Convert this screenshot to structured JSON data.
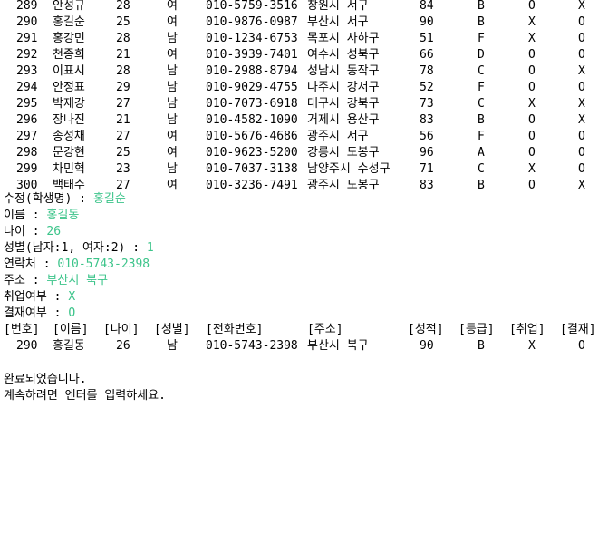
{
  "list_rows": [
    [
      "289",
      "안성규",
      "28",
      "여",
      "010-5759-3516",
      "창원시 서구",
      "84",
      "B",
      "O",
      "X"
    ],
    [
      "290",
      "홍길순",
      "25",
      "여",
      "010-9876-0987",
      "부산시 서구",
      "90",
      "B",
      "X",
      "O"
    ],
    [
      "291",
      "홍강민",
      "28",
      "남",
      "010-1234-6753",
      "목포시 사하구",
      "51",
      "F",
      "X",
      "O"
    ],
    [
      "292",
      "천종희",
      "21",
      "여",
      "010-3939-7401",
      "여수시 성북구",
      "66",
      "D",
      "O",
      "O"
    ],
    [
      "293",
      "이표시",
      "28",
      "남",
      "010-2988-8794",
      "성남시 동작구",
      "78",
      "C",
      "O",
      "X"
    ],
    [
      "294",
      "안정표",
      "29",
      "남",
      "010-9029-4755",
      "나주시 강서구",
      "52",
      "F",
      "O",
      "O"
    ],
    [
      "295",
      "박재강",
      "27",
      "남",
      "010-7073-6918",
      "대구시 강북구",
      "73",
      "C",
      "X",
      "X"
    ],
    [
      "296",
      "장나진",
      "21",
      "남",
      "010-4582-1090",
      "거제시 용산구",
      "83",
      "B",
      "O",
      "X"
    ],
    [
      "297",
      "송성채",
      "27",
      "여",
      "010-5676-4686",
      "광주시 서구",
      "56",
      "F",
      "O",
      "O"
    ],
    [
      "298",
      "문강현",
      "25",
      "여",
      "010-9623-5200",
      "강릉시 도봉구",
      "96",
      "A",
      "O",
      "O"
    ],
    [
      "299",
      "차민혁",
      "23",
      "남",
      "010-7037-3138",
      "남양주시 수성구",
      "71",
      "C",
      "X",
      "O"
    ],
    [
      "300",
      "백태수",
      "27",
      "여",
      "010-3236-7491",
      "광주시 도봉구",
      "83",
      "B",
      "O",
      "X"
    ]
  ],
  "prompts": [
    {
      "label": "수정(학생명) : ",
      "value": "홍길순"
    },
    {
      "label": "이름 : ",
      "value": "홍길동"
    },
    {
      "label": "나이 : ",
      "value": "26"
    },
    {
      "label": "성별(남자:1, 여자:2) : ",
      "value": "1"
    },
    {
      "label": "연락처 : ",
      "value": "010-5743-2398"
    },
    {
      "label": "주소 : ",
      "value": "부산시 북구"
    },
    {
      "label": "취업여부 : ",
      "value": "X"
    },
    {
      "label": "결재여부 : ",
      "value": "O"
    }
  ],
  "result_header": [
    "[번호]",
    "[이름]",
    "[나이]",
    "[성별]",
    "[전화번호]",
    "[주소]",
    "[성적]",
    "[등급]",
    "[취업]",
    "[결재]"
  ],
  "result_row": [
    "290",
    "홍길동",
    "26",
    "남",
    "010-5743-2398",
    "부산시 북구",
    "90",
    "B",
    "X",
    "O"
  ],
  "messages": {
    "done": "완료되었습니다.",
    "continue": "계속하려면 엔터를 입력하세요."
  },
  "colors": {
    "background": "#ffffff",
    "text": "#000000",
    "input_echo": "#3cc48a"
  }
}
